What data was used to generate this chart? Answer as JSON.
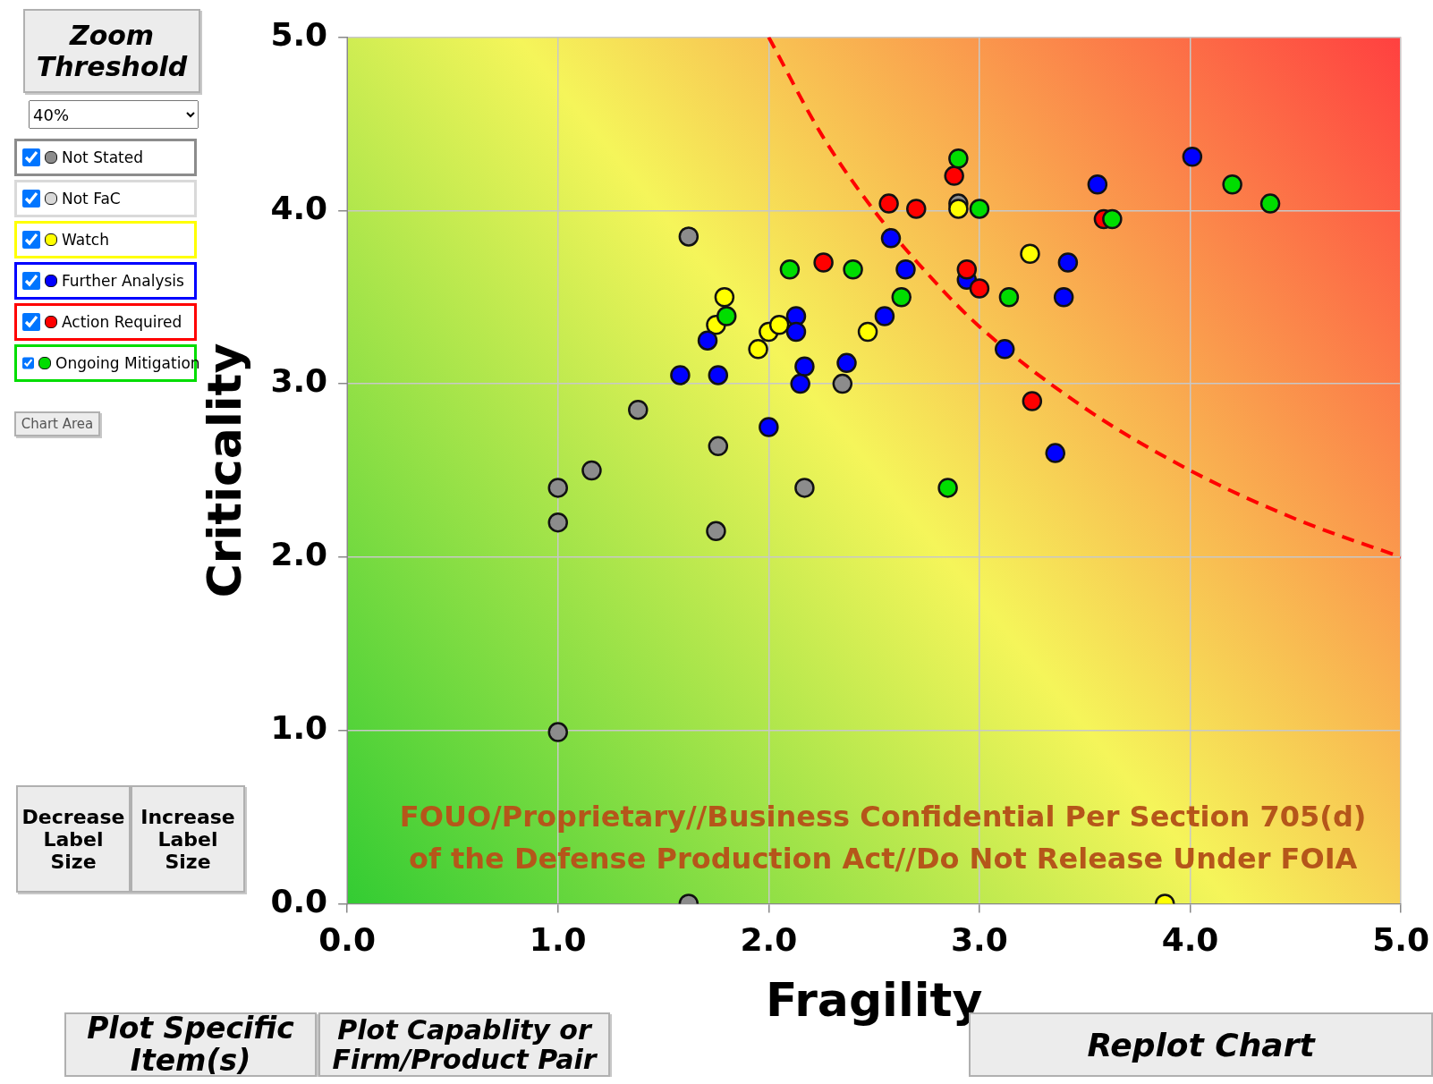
{
  "chart_data": {
    "type": "scatter",
    "xlabel": "Fragility",
    "ylabel": "Criticality",
    "xlim": [
      0,
      5
    ],
    "ylim": [
      0,
      5
    ],
    "xticks": [
      {
        "value": 0,
        "label": "0.0"
      },
      {
        "value": 1,
        "label": "1.0"
      },
      {
        "value": 2,
        "label": "2.0"
      },
      {
        "value": 3,
        "label": "3.0"
      },
      {
        "value": 4,
        "label": "4.0"
      },
      {
        "value": 5,
        "label": "5.0"
      }
    ],
    "yticks": [
      {
        "value": 0,
        "label": "0.0"
      },
      {
        "value": 1,
        "label": "1.0"
      },
      {
        "value": 2,
        "label": "2.0"
      },
      {
        "value": 3,
        "label": "3.0"
      },
      {
        "value": 4,
        "label": "4.0"
      },
      {
        "value": 5,
        "label": "5.0"
      }
    ],
    "grid": true,
    "legend": "left",
    "marker": "circle",
    "series": [
      {
        "name": "Not Stated",
        "color": "#8c8c8c",
        "x": [
          1.62,
          1.38,
          1.0,
          1.16,
          1.0,
          1.76,
          1.75,
          2.17,
          2.35,
          1.0,
          1.62,
          2.9
        ],
        "values": [
          3.85,
          2.85,
          2.4,
          2.5,
          2.2,
          2.64,
          2.15,
          2.4,
          3.0,
          0.99,
          0.0,
          4.04
        ]
      },
      {
        "name": "Not FaC",
        "color": "#d9d9d9"
      },
      {
        "name": "Watch",
        "color": "#ffff00",
        "x": [
          1.79,
          1.75,
          1.95,
          2.0,
          2.05,
          2.47,
          2.9,
          3.24,
          3.88
        ],
        "values": [
          3.5,
          3.34,
          3.2,
          3.3,
          3.34,
          3.3,
          4.01,
          3.75,
          0.0
        ]
      },
      {
        "name": "Further Analysis",
        "color": "#0000ff",
        "x": [
          1.58,
          1.71,
          1.76,
          2.0,
          2.13,
          2.13,
          2.17,
          2.15,
          2.37,
          2.55,
          2.58,
          2.65,
          2.94,
          3.12,
          3.36,
          3.4,
          3.42,
          3.56,
          4.01
        ],
        "values": [
          3.05,
          3.25,
          3.05,
          2.75,
          3.39,
          3.3,
          3.1,
          3.0,
          3.12,
          3.39,
          3.84,
          3.66,
          3.6,
          3.2,
          2.6,
          3.5,
          3.7,
          4.15,
          4.31
        ]
      },
      {
        "name": "Action Required",
        "color": "#ff0000",
        "x": [
          2.26,
          2.57,
          2.7,
          2.88,
          2.94,
          3.0,
          3.25,
          3.59
        ],
        "values": [
          3.7,
          4.04,
          4.01,
          4.2,
          3.66,
          3.55,
          2.9,
          3.95
        ]
      },
      {
        "name": "Ongoing Mitigation",
        "color": "#00dd00",
        "x": [
          1.8,
          2.1,
          2.4,
          2.63,
          2.9,
          3.0,
          3.14,
          2.85,
          3.63,
          4.2,
          4.38
        ],
        "values": [
          3.39,
          3.66,
          3.66,
          3.5,
          4.3,
          4.01,
          3.5,
          2.4,
          3.95,
          4.15,
          4.04
        ]
      },
      {
        "type": "line",
        "color": "#ff0000",
        "line_style": "dashed",
        "marker": "none",
        "x": [
          2,
          2.25,
          2.5,
          2.75,
          3,
          3.5,
          4,
          4.5,
          5
        ],
        "values": [
          5,
          4.44,
          4,
          3.64,
          3.33,
          2.86,
          2.5,
          2.22,
          2
        ]
      }
    ],
    "annotations": [
      "FOUO/Proprietary//Business Confidential Per Section 705(d) of the Defense Production Act//Do Not Release Under FOIA",
      "Zoom Threshold",
      "40%",
      "Chart Area",
      "Decrease Label Size",
      "Increase Label Size",
      "Plot Specific Item(s)",
      "Plot Capablity or Firm/Product Pair",
      "Replot Chart"
    ]
  }
}
